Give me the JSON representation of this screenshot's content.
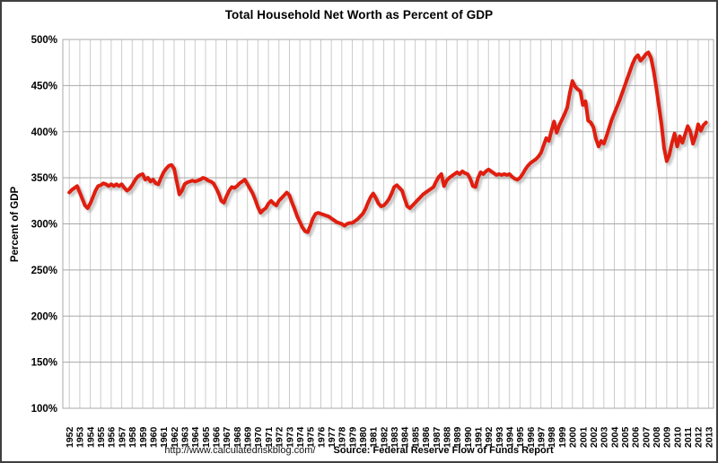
{
  "header": {
    "title": "Total Household Net Worth as Percent of GDP"
  },
  "footer": {
    "url": "http://www.calculatedriskblog.com/",
    "source": "Source: Federal Reserve Flow of Funds Report"
  },
  "colors": {
    "line": "#e01e0f",
    "line_shadow": "#9a9a9a",
    "grid_horizontal": "#a8a8a8",
    "grid_vertical": "#cbcbcb",
    "plot_border": "#a8a8a8",
    "text": "#000000",
    "background": "#ffffff",
    "frame_border": "#3f3f3f"
  },
  "chart_data": {
    "type": "line",
    "title": "Total Household Net Worth as Percent of GDP",
    "xlabel": "",
    "ylabel": "Percent of GDP",
    "ylim": [
      100,
      500
    ],
    "y_ticks": [
      500,
      450,
      400,
      350,
      300,
      250,
      200,
      150,
      100
    ],
    "y_tick_suffix": "%",
    "grid": true,
    "legend": "none",
    "x_ticks": [
      1952,
      1953,
      1954,
      1955,
      1956,
      1957,
      1958,
      1959,
      1960,
      1961,
      1962,
      1963,
      1964,
      1965,
      1966,
      1967,
      1968,
      1969,
      1970,
      1971,
      1972,
      1973,
      1974,
      1975,
      1976,
      1977,
      1978,
      1979,
      1980,
      1981,
      1982,
      1983,
      1984,
      1985,
      1986,
      1987,
      1988,
      1989,
      1990,
      1991,
      1992,
      1993,
      1994,
      1995,
      1996,
      1997,
      1998,
      1999,
      2000,
      2001,
      2002,
      2003,
      2004,
      2005,
      2006,
      2007,
      2008,
      2009,
      2010,
      2011,
      2012,
      2013
    ],
    "series": [
      {
        "name": "household_net_worth_pct_gdp",
        "start_year": 1952,
        "frequency": "quarterly",
        "values": [
          334,
          337,
          339,
          341,
          334,
          327,
          320,
          317,
          322,
          329,
          336,
          341,
          342,
          344,
          343,
          341,
          343,
          341,
          343,
          341,
          343,
          339,
          336,
          338,
          342,
          347,
          351,
          353,
          354,
          348,
          350,
          346,
          348,
          344,
          343,
          350,
          356,
          360,
          363,
          364,
          360,
          346,
          332,
          336,
          343,
          345,
          346,
          347,
          346,
          347,
          348,
          350,
          349,
          347,
          346,
          344,
          339,
          333,
          325,
          323,
          330,
          336,
          340,
          339,
          341,
          344,
          346,
          348,
          343,
          338,
          333,
          326,
          318,
          312,
          315,
          317,
          322,
          325,
          322,
          320,
          325,
          328,
          331,
          334,
          331,
          323,
          316,
          308,
          302,
          296,
          292,
          291,
          298,
          306,
          311,
          312,
          311,
          310,
          309,
          308,
          306,
          304,
          302,
          301,
          300,
          298,
          300,
          301,
          301,
          303,
          305,
          308,
          311,
          316,
          323,
          329,
          333,
          328,
          322,
          319,
          320,
          323,
          327,
          333,
          340,
          342,
          339,
          336,
          327,
          319,
          317,
          320,
          323,
          326,
          329,
          332,
          334,
          336,
          338,
          340,
          346,
          351,
          354,
          341,
          347,
          350,
          352,
          354,
          356,
          354,
          357,
          355,
          354,
          349,
          341,
          340,
          350,
          356,
          354,
          357,
          359,
          357,
          355,
          353,
          354,
          353,
          354,
          353,
          354,
          351,
          349,
          348,
          350,
          354,
          359,
          363,
          366,
          368,
          370,
          373,
          377,
          385,
          393,
          390,
          401,
          411,
          399,
          407,
          413,
          419,
          426,
          442,
          455,
          449,
          446,
          444,
          429,
          433,
          412,
          410,
          405,
          392,
          384,
          390,
          387,
          395,
          404,
          413,
          420,
          427,
          434,
          442,
          450,
          458,
          466,
          474,
          480,
          483,
          477,
          480,
          484,
          486,
          480,
          466,
          448,
          428,
          408,
          382,
          368,
          375,
          388,
          398,
          384,
          395,
          388,
          397,
          406,
          400,
          387,
          395,
          408,
          401,
          407,
          410
        ]
      }
    ]
  }
}
